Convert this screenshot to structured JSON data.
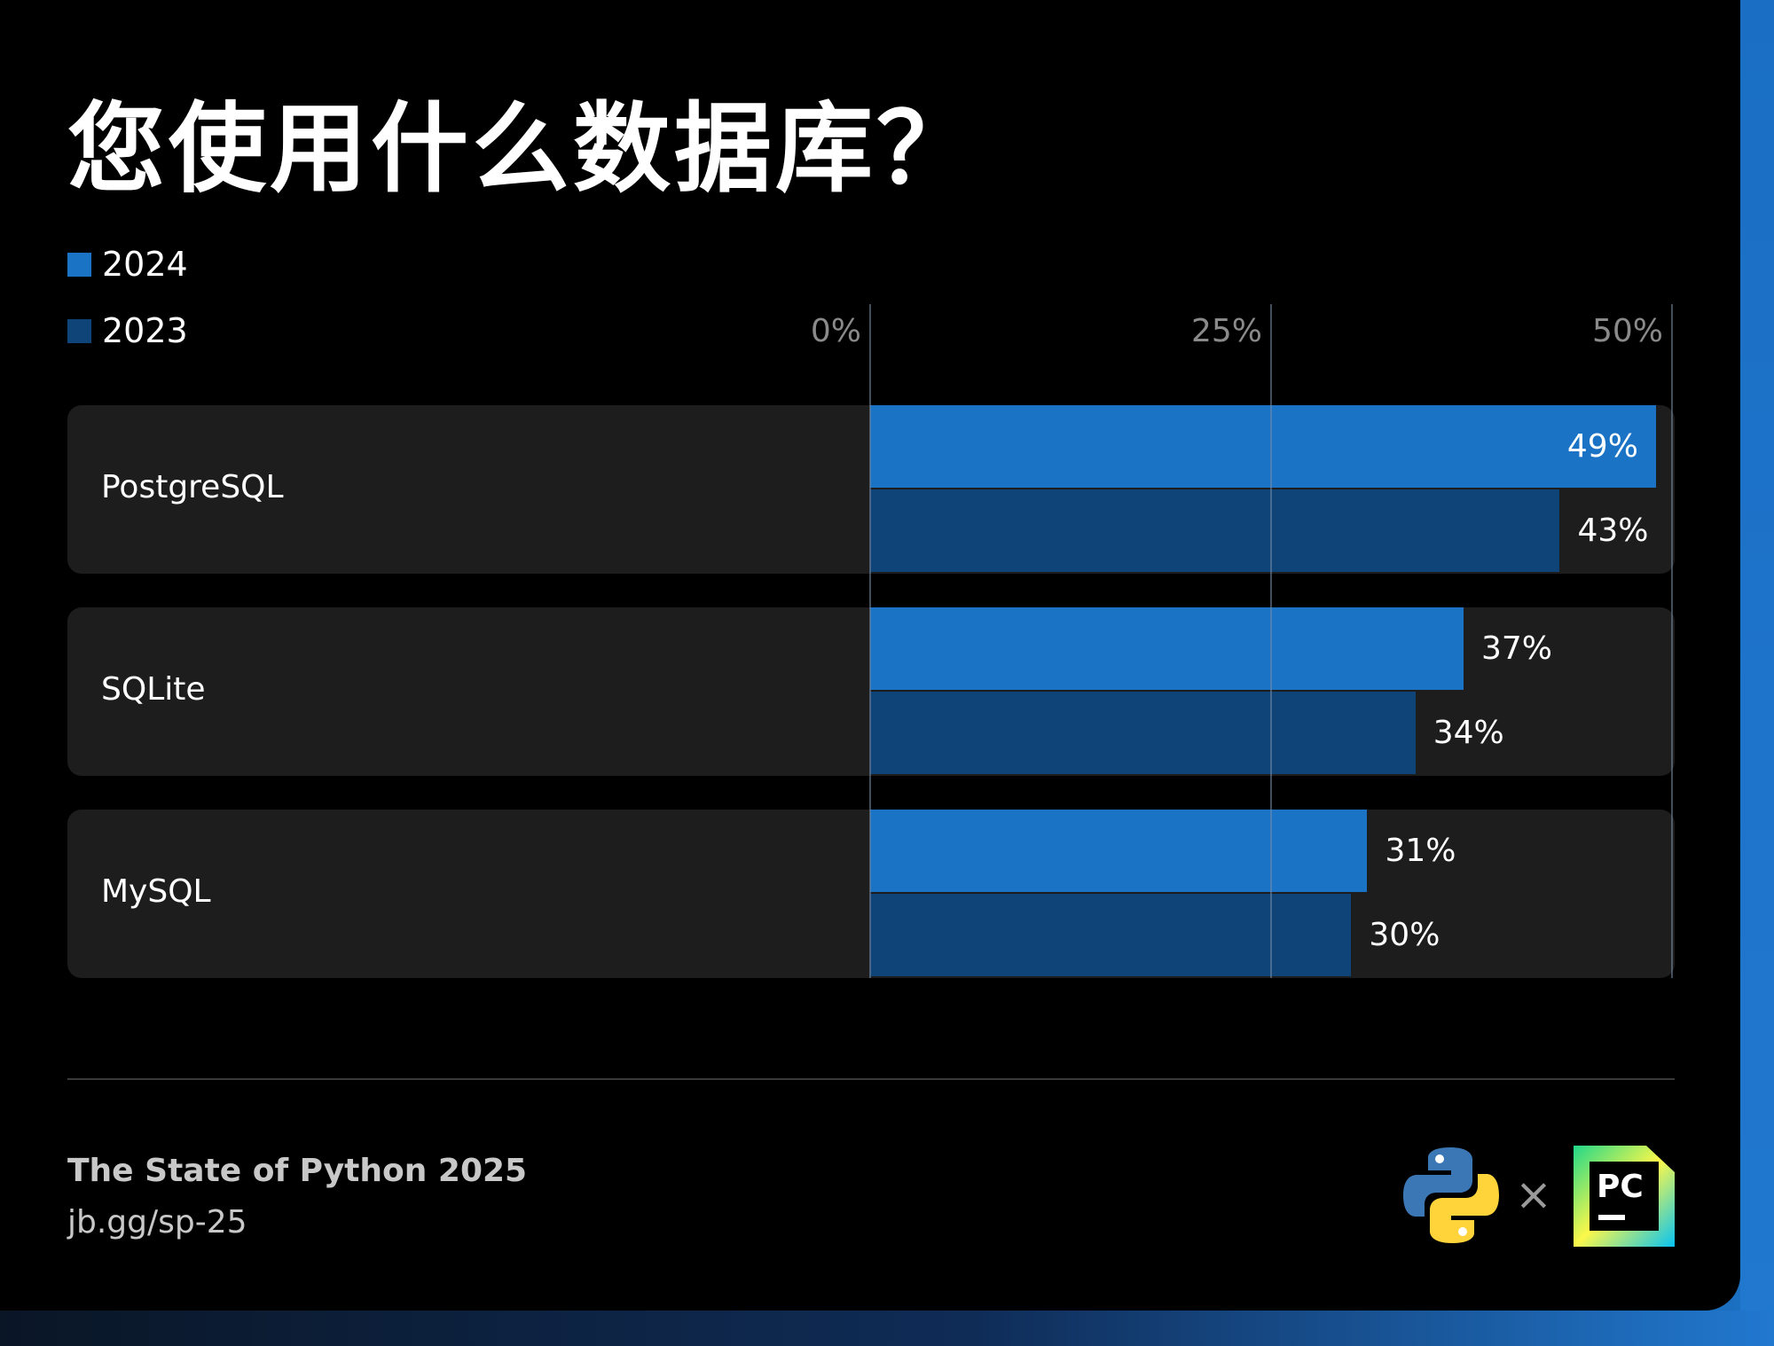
{
  "title": "您使用什么数据库？",
  "legend": [
    {
      "label": "2024",
      "color": "#1a73c4"
    },
    {
      "label": "2023",
      "color": "#0e4477"
    }
  ],
  "chart_data": {
    "type": "bar",
    "orientation": "horizontal",
    "categories": [
      "PostgreSQL",
      "SQLite",
      "MySQL"
    ],
    "series": [
      {
        "name": "2024",
        "values": [
          49,
          37,
          31
        ],
        "value_labels": [
          "49%",
          "37%",
          "31%"
        ],
        "color": "#1a73c4"
      },
      {
        "name": "2023",
        "values": [
          43,
          34,
          30
        ],
        "value_labels": [
          "43%",
          "34%",
          "30%"
        ],
        "color": "#0e4477"
      }
    ],
    "xlim": [
      0,
      50
    ],
    "ticks": [
      {
        "value": 0,
        "label": "0%"
      },
      {
        "value": 25,
        "label": "25%"
      },
      {
        "value": 50,
        "label": "50%"
      }
    ],
    "legend_position": "top-left",
    "grid": true
  },
  "footer": {
    "title": "The State of Python 2025",
    "url": "jb.gg/sp-25"
  },
  "logos": {
    "python": "python-logo-icon",
    "separator": "×",
    "pycharm": "PC"
  }
}
